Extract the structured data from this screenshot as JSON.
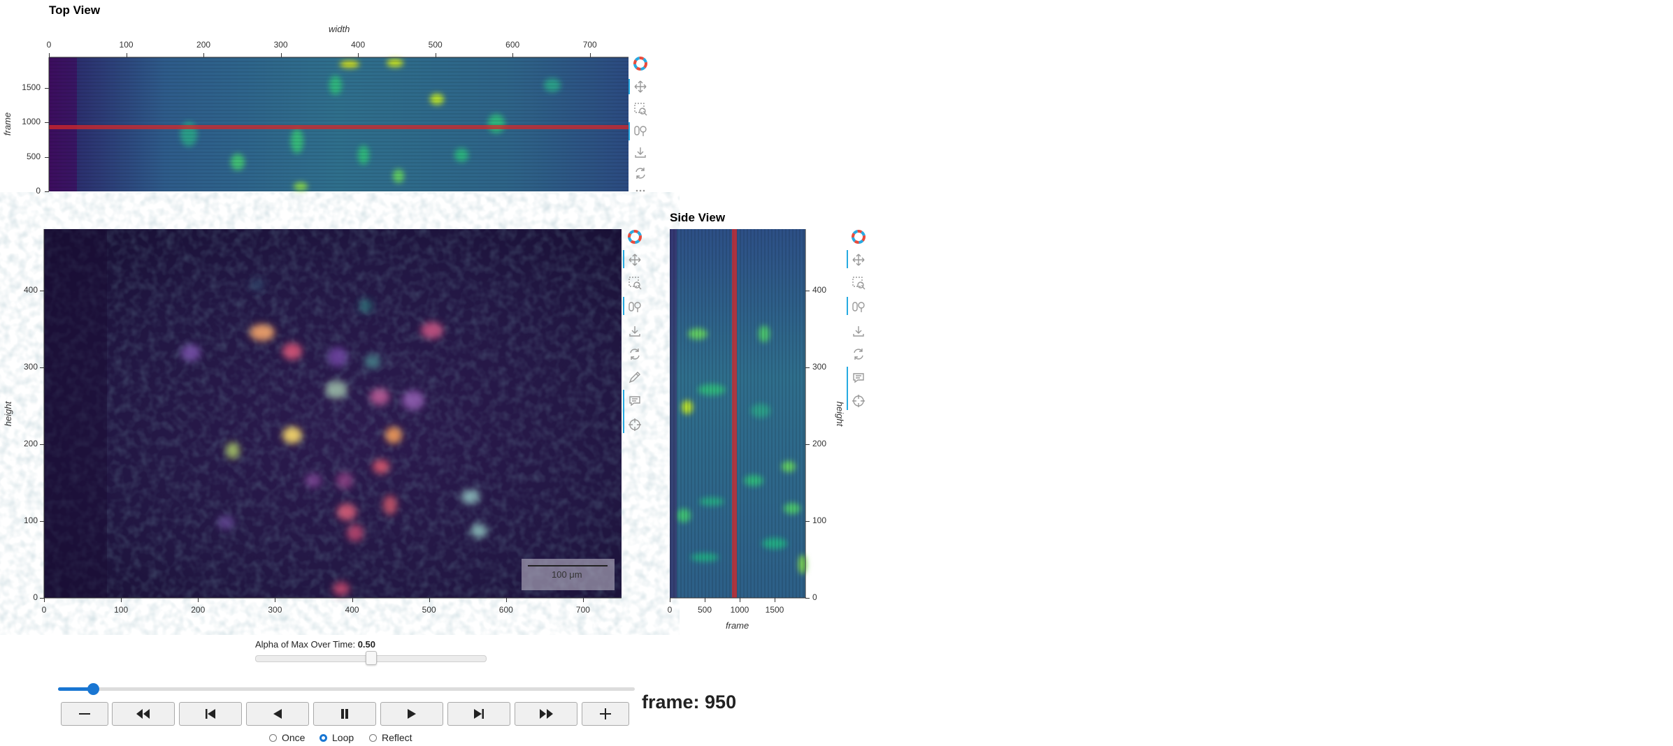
{
  "top_view": {
    "title": "Top View",
    "x_label": "width",
    "y_label": "frame",
    "x_ticks": [
      "0",
      "100",
      "200",
      "300",
      "400",
      "500",
      "600",
      "700"
    ],
    "y_ticks": [
      "0",
      "500",
      "1000",
      "1500"
    ],
    "current_frame": 950
  },
  "main_view": {
    "x_label": "",
    "y_label": "height",
    "x_ticks": [
      "0",
      "100",
      "200",
      "300",
      "400",
      "500",
      "600",
      "700"
    ],
    "y_ticks": [
      "0",
      "100",
      "200",
      "300",
      "400"
    ],
    "scalebar_label": "100 μm"
  },
  "side_view": {
    "title": "Side View",
    "x_label": "frame",
    "y_label": "height",
    "x_ticks": [
      "0",
      "500",
      "1000",
      "1500"
    ],
    "y_ticks": [
      "0",
      "100",
      "200",
      "300",
      "400"
    ]
  },
  "toolbar_icons": [
    "bokeh-logo-icon",
    "pan-icon",
    "box-zoom-icon",
    "wheel-zoom-icon",
    "save-icon",
    "reset-icon",
    "more-icon",
    "edit-icon",
    "hover-icon",
    "crosshair-icon"
  ],
  "alpha_slider": {
    "label": "Alpha of Max Over Time:",
    "value_text": "0.50",
    "value": 0.5
  },
  "player": {
    "frame_label": "frame: 950",
    "progress": 0.06,
    "modes": [
      "Once",
      "Loop",
      "Reflect"
    ],
    "selected_mode": "Loop"
  },
  "colors": {
    "viridis_dark": "#440154",
    "viridis_mid": "#21908d",
    "accent_blue": "#1976d2",
    "toolbar_active": "#26aae1",
    "frame_marker": "#d62728"
  }
}
